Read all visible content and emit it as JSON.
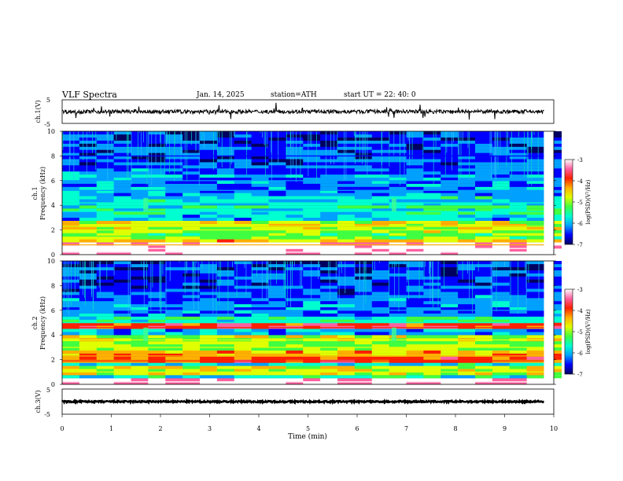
{
  "header": {
    "title": "VLF  Spectra",
    "date": "Jan. 14, 2025",
    "station": "station=ATH",
    "start": "start  UT  =   22: 40: 0"
  },
  "colorbar": {
    "label": "log(PSD)(V²/Hz)",
    "ticks": [
      "-3",
      "-4",
      "-5",
      "-6",
      "-7"
    ],
    "range": [
      -7,
      -3
    ],
    "colors": [
      "#000060",
      "#0000ff",
      "#00a0ff",
      "#00ffd0",
      "#40ff40",
      "#e0ff00",
      "#ffb000",
      "#ff2000",
      "#ff60a0",
      "#ffffff"
    ]
  },
  "chart_data": [
    {
      "type": "line",
      "name": "ch1-waveform",
      "ylabel": "ch.1(V)",
      "yticks": [
        "5",
        "-5"
      ],
      "ylim": [
        -5,
        5
      ],
      "xlim": [
        0,
        9.8
      ],
      "baseline": 0,
      "approx_amplitude": 0.8,
      "note_values": "noisy waveform centered near 0 V with spikes up to about ±3 V"
    },
    {
      "type": "heatmap",
      "name": "ch1-spectrogram",
      "ylabel": "ch.1\nFrequency  (kHz)",
      "ylabel_lines": [
        "ch.1",
        "Frequency  (kHz)"
      ],
      "yticks": [
        "0",
        "2",
        "4",
        "6",
        "8",
        "10"
      ],
      "ylim": [
        0,
        10
      ],
      "xlim": [
        0,
        9.8
      ],
      "bands_khz": [
        {
          "f": 0.2,
          "level": -3.2
        },
        {
          "f": 0.5,
          "level": -3.0
        },
        {
          "f": 0.8,
          "level": -4.5
        },
        {
          "f": 1.5,
          "level": -5.2
        },
        {
          "f": 2.0,
          "level": -5.0
        },
        {
          "f": 2.3,
          "level": -4.8
        },
        {
          "f": 3.5,
          "level": -5.6
        },
        {
          "f": 4.2,
          "level": -5.8
        },
        {
          "f": 5.2,
          "level": -6.2
        },
        {
          "f": 6.0,
          "level": -6.1
        },
        {
          "f": 8.0,
          "level": -6.5
        }
      ],
      "events_min": [
        1.7,
        6.75
      ]
    },
    {
      "type": "heatmap",
      "name": "ch2-spectrogram",
      "ylabel": "ch.2\nFrequency  (kHz)",
      "ylabel_lines": [
        "ch.2",
        "Frequency  (kHz)"
      ],
      "yticks": [
        "0",
        "2",
        "4",
        "6",
        "8",
        "10"
      ],
      "ylim": [
        0,
        10
      ],
      "xlim": [
        0,
        9.8
      ],
      "bands_khz": [
        {
          "f": 0.2,
          "level": -3.2
        },
        {
          "f": 1.0,
          "level": -4.8
        },
        {
          "f": 1.9,
          "level": -4.0
        },
        {
          "f": 2.3,
          "level": -4.4
        },
        {
          "f": 3.0,
          "level": -5.0
        },
        {
          "f": 3.6,
          "level": -4.8
        },
        {
          "f": 4.6,
          "level": -3.8
        },
        {
          "f": 5.0,
          "level": -5.5
        },
        {
          "f": 6.0,
          "level": -6.2
        }
      ],
      "events_min": [
        1.7,
        6.75
      ]
    },
    {
      "type": "line",
      "name": "ch3-waveform",
      "ylabel": "ch.3(V)",
      "yticks": [
        "5",
        "-5"
      ],
      "ylim": [
        -5,
        5
      ],
      "xlim": [
        0,
        9.8
      ],
      "baseline": 0,
      "approx_amplitude": 0.3
    }
  ],
  "xaxis": {
    "label": "Time  (min)",
    "ticks": [
      "0",
      "1",
      "2",
      "3",
      "4",
      "5",
      "6",
      "7",
      "8",
      "9",
      "10"
    ],
    "range": [
      0,
      10
    ]
  }
}
